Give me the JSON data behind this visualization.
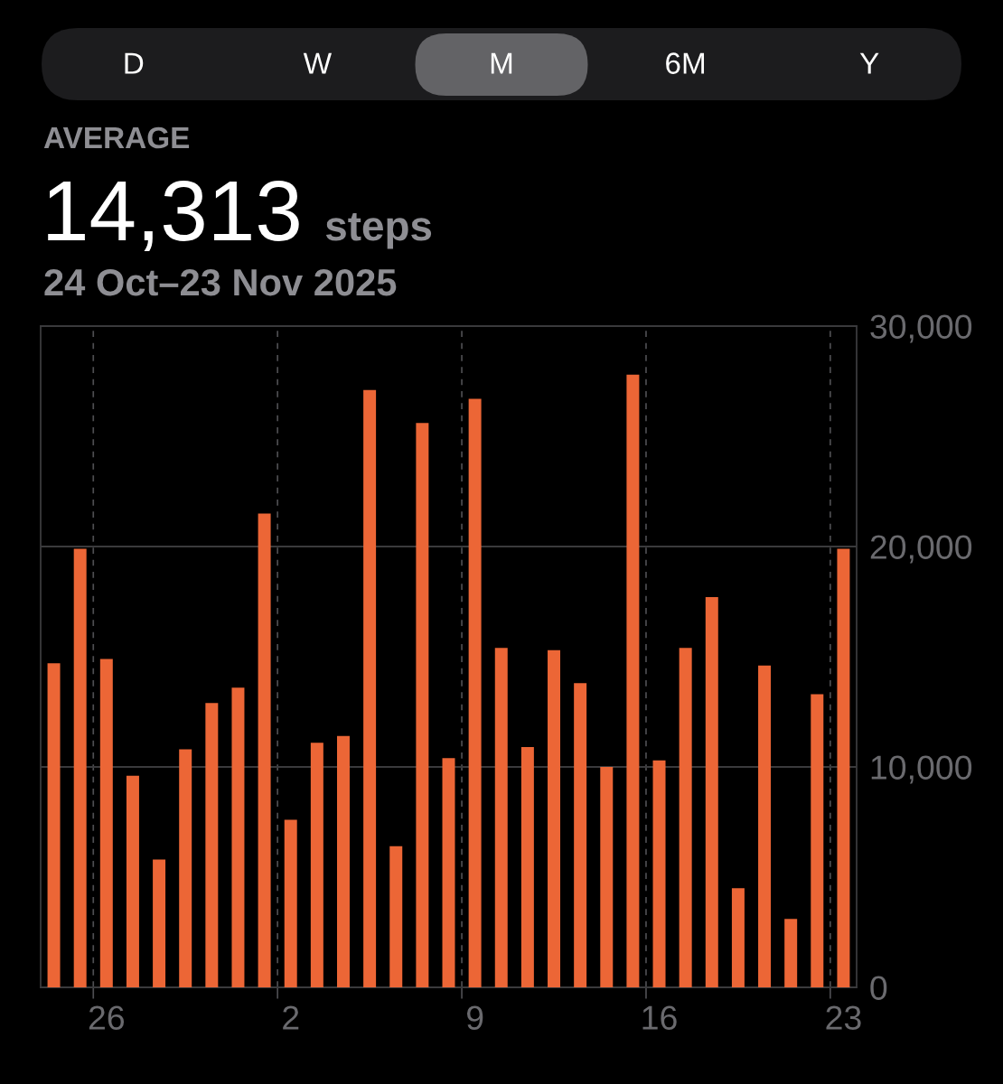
{
  "chart_data": {
    "type": "bar",
    "title": "AVERAGE",
    "subtitle": "14,313 steps",
    "annotations": [
      "24 Oct–23 Nov 2025",
      "D",
      "W",
      "M",
      "6M",
      "Y"
    ],
    "categories": [
      null,
      null,
      "26",
      null,
      null,
      null,
      null,
      null,
      null,
      "2",
      null,
      null,
      null,
      null,
      null,
      null,
      "9",
      null,
      null,
      null,
      null,
      null,
      null,
      "16",
      null,
      null,
      null,
      null,
      null,
      null,
      "23"
    ],
    "values": [
      14700,
      19900,
      14900,
      9600,
      5800,
      10800,
      12900,
      13600,
      21500,
      7600,
      11100,
      11400,
      27100,
      6400,
      25600,
      10400,
      26700,
      15400,
      10900,
      15300,
      13800,
      10000,
      27800,
      10300,
      15400,
      17700,
      4500,
      14600,
      3100,
      13300,
      19900
    ],
    "color": "#ec6636",
    "ylim": [
      0,
      30000
    ],
    "yticks": [
      0,
      {
        "value": 10000,
        "label": "10,000"
      },
      {
        "value": 20000,
        "label": "20,000"
      },
      {
        "value": 30000,
        "label": "30,000"
      }
    ],
    "grid": true
  }
}
